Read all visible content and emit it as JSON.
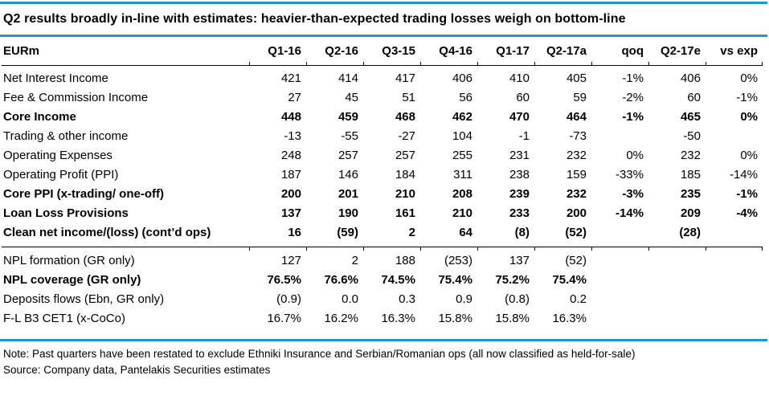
{
  "title": "Q2 results broadly in-line with estimates: heavier-than-expected trading losses weigh on bottom-line",
  "colors": {
    "accent_blue": "#1e96cf",
    "rule_black": "#000000"
  },
  "table": {
    "unit_label": "EURm",
    "columns": [
      "Q1-16",
      "Q2-16",
      "Q3-15",
      "Q4-16",
      "Q1-17",
      "Q2-17a",
      "qoq",
      "Q2-17e",
      "vs exp"
    ],
    "sections": [
      {
        "rows": [
          {
            "label": "Net Interest Income",
            "bold": false,
            "values": [
              "421",
              "414",
              "417",
              "406",
              "410",
              "405",
              "-1%",
              "406",
              "0%"
            ]
          },
          {
            "label": "Fee & Commission Income",
            "bold": false,
            "values": [
              "27",
              "45",
              "51",
              "56",
              "60",
              "59",
              "-2%",
              "60",
              "-1%"
            ]
          },
          {
            "label": "Core Income",
            "bold": true,
            "values": [
              "448",
              "459",
              "468",
              "462",
              "470",
              "464",
              "-1%",
              "465",
              "0%"
            ]
          },
          {
            "label": "Trading & other income",
            "bold": false,
            "values": [
              "-13",
              "-55",
              "-27",
              "104",
              "-1",
              "-73",
              "",
              "-50",
              ""
            ]
          },
          {
            "label": "Operating Expenses",
            "bold": false,
            "values": [
              "248",
              "257",
              "257",
              "255",
              "231",
              "232",
              "0%",
              "232",
              "0%"
            ]
          },
          {
            "label": "Operating Profit (PPI)",
            "bold": false,
            "values": [
              "187",
              "146",
              "184",
              "311",
              "238",
              "159",
              "-33%",
              "185",
              "-14%"
            ]
          },
          {
            "label": "Core PPI (x-trading/ one-off)",
            "bold": true,
            "values": [
              "200",
              "201",
              "210",
              "208",
              "239",
              "232",
              "-3%",
              "235",
              "-1%"
            ]
          },
          {
            "label": "Loan Loss Provisions",
            "bold": true,
            "values": [
              "137",
              "190",
              "161",
              "210",
              "233",
              "200",
              "-14%",
              "209",
              "-4%"
            ]
          },
          {
            "label": "Clean net income/(loss) (cont’d ops)",
            "bold": true,
            "values": [
              "16",
              "(59)",
              "2",
              "64",
              "(8)",
              "(52)",
              "",
              "(28)",
              ""
            ]
          }
        ]
      },
      {
        "rows": [
          {
            "label": "NPL formation (GR only)",
            "bold": false,
            "values": [
              "127",
              "2",
              "188",
              "(253)",
              "137",
              "(52)",
              "",
              "",
              ""
            ]
          },
          {
            "label": "NPL coverage (GR only)",
            "bold": true,
            "values": [
              "76.5%",
              "76.6%",
              "74.5%",
              "75.4%",
              "75.2%",
              "75.4%",
              "",
              "",
              ""
            ]
          },
          {
            "label": "Deposits flows (Ebn, GR only)",
            "bold": false,
            "values": [
              "(0.9)",
              "0.0",
              "0.3",
              "0.9",
              "(0.8)",
              "0.2",
              "",
              "",
              ""
            ]
          },
          {
            "label": "F-L B3 CET1 (x-CoCo)",
            "bold": false,
            "values": [
              "16.7%",
              "16.2%",
              "16.3%",
              "15.8%",
              "15.8%",
              "16.3%",
              "",
              "",
              ""
            ]
          }
        ]
      }
    ]
  },
  "footer": {
    "note": "Note: Past quarters have been restated to exclude Ethniki Insurance and Serbian/Romanian ops (all now classified as held-for-sale)",
    "source": "Source: Company data, Pantelakis Securities estimates"
  }
}
